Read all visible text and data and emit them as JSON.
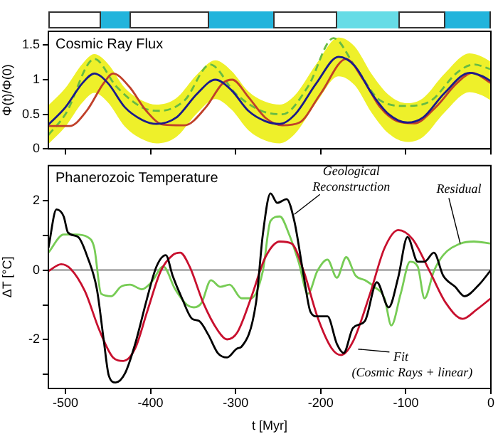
{
  "chart_data": [
    {
      "type": "line",
      "title": "Cosmic Ray Flux",
      "ylabel": "Φ(t)/Φ(0)",
      "xlim": [
        -520,
        0
      ],
      "xticks": [
        -500,
        -400,
        -300,
        -200,
        -100,
        0
      ],
      "ylim": [
        0,
        1.7
      ],
      "yticks": [
        0,
        0.5,
        1,
        1.5
      ],
      "tick_labels": "y",
      "grid": false,
      "legend": false,
      "series": [
        {
          "color": "#66bb44",
          "line_style": "dashed",
          "x": [
            -520,
            -500,
            -466,
            -440,
            -410,
            -390,
            -360,
            -330,
            -300,
            -270,
            -245,
            -215,
            -185,
            -160,
            -130,
            -100,
            -70,
            -40,
            -20,
            0
          ],
          "values": [
            0.2,
            0.5,
            1.3,
            0.9,
            0.6,
            0.55,
            0.7,
            1.22,
            0.8,
            0.55,
            0.5,
            0.9,
            1.6,
            1.2,
            0.7,
            0.62,
            0.7,
            1.1,
            1.22,
            1.15
          ]
        },
        {
          "color": "#c0402a",
          "x": [
            -520,
            -495,
            -475,
            -455,
            -444,
            -425,
            -405,
            -385,
            -360,
            -335,
            -315,
            -304,
            -285,
            -265,
            -245,
            -225,
            -200,
            -170,
            -150,
            -130,
            -110,
            -90,
            -65,
            -40,
            -22,
            0
          ],
          "values": [
            0.33,
            0.33,
            0.55,
            0.95,
            1.09,
            0.9,
            0.55,
            0.35,
            0.34,
            0.6,
            0.95,
            1.0,
            0.75,
            0.45,
            0.34,
            0.38,
            0.8,
            1.3,
            1.0,
            0.6,
            0.4,
            0.37,
            0.6,
            0.95,
            1.1,
            0.95
          ]
        },
        {
          "color": "#1a1a8c",
          "x": [
            -520,
            -500,
            -480,
            -466,
            -450,
            -430,
            -410,
            -393,
            -370,
            -345,
            -324,
            -305,
            -285,
            -265,
            -248,
            -230,
            -205,
            -179,
            -160,
            -140,
            -120,
            -98,
            -80,
            -55,
            -25,
            -10,
            0
          ],
          "values": [
            0.35,
            0.6,
            0.95,
            1.09,
            0.95,
            0.6,
            0.42,
            0.36,
            0.45,
            0.8,
            1.0,
            0.85,
            0.55,
            0.4,
            0.36,
            0.5,
            0.95,
            1.33,
            1.2,
            0.8,
            0.5,
            0.38,
            0.45,
            0.8,
            1.1,
            1.05,
            0.98
          ],
          "lower": [
            0.07,
            0.32,
            0.67,
            0.81,
            0.67,
            0.32,
            0.14,
            0.08,
            0.17,
            0.52,
            0.72,
            0.57,
            0.27,
            0.12,
            0.08,
            0.22,
            0.67,
            1.05,
            0.92,
            0.52,
            0.22,
            0.1,
            0.17,
            0.52,
            0.82,
            0.77,
            0.7
          ],
          "upper": [
            0.63,
            0.88,
            1.23,
            1.37,
            1.23,
            0.88,
            0.7,
            0.64,
            0.73,
            1.08,
            1.28,
            1.13,
            0.83,
            0.68,
            0.64,
            0.78,
            1.23,
            1.61,
            1.48,
            1.08,
            0.78,
            0.66,
            0.73,
            1.08,
            1.38,
            1.33,
            1.26
          ]
        }
      ]
    },
    {
      "type": "line",
      "title": "Phanerozoic Temperature",
      "xlabel": "t [Myr]",
      "ylabel": "ΔT [°C]",
      "xlim": [
        -520,
        0
      ],
      "xticks": [
        -500,
        -400,
        -300,
        -200,
        -100,
        0
      ],
      "ylim": [
        -3.4,
        3
      ],
      "yticks": [
        {
          "value": -3,
          "label": null
        },
        -2,
        {
          "value": -1,
          "label": null
        },
        0,
        {
          "value": 1,
          "label": null
        },
        2
      ],
      "grid": false,
      "legend": false,
      "ref_lines": [
        {
          "axis": "y",
          "value": 0,
          "color": "#888888"
        }
      ],
      "annotations": [
        {
          "text": "Geological Reconstruction",
          "x": -231,
          "y": 1.6
        },
        {
          "text": "Residual",
          "x": -36,
          "y": 0.76
        },
        {
          "text": "Fit (Cosmic Rays + linear)",
          "x": -156,
          "y": -2.27
        }
      ],
      "series": [
        {
          "color": "#77cc55",
          "x": [
            -520,
            -502,
            -488,
            -474,
            -466,
            -458,
            -446,
            -435,
            -424,
            -410,
            -399,
            -385,
            -371,
            -357,
            -349,
            -340,
            -329,
            -318,
            -307,
            -293,
            -282,
            -268,
            -259,
            -248,
            -237,
            -226,
            -215,
            -204,
            -192,
            -181,
            -170,
            -159,
            -148,
            -137,
            -125,
            -117,
            -106,
            -95,
            -86,
            -78,
            -67,
            -56,
            -36,
            -20,
            0
          ],
          "values": [
            0.5,
            1.02,
            1.02,
            0.95,
            0.63,
            -0.68,
            -0.75,
            -0.48,
            -0.42,
            -0.55,
            -0.35,
            0.1,
            -0.55,
            -1.0,
            -1.07,
            -0.94,
            -0.29,
            -0.48,
            -0.42,
            -0.81,
            -0.81,
            -0.03,
            1.41,
            1.54,
            1.02,
            0.24,
            -0.68,
            -0.03,
            0.3,
            -0.22,
            0.37,
            -0.16,
            -0.29,
            -0.48,
            -0.81,
            -1.59,
            -0.68,
            0.24,
            0.1,
            -0.81,
            -0.03,
            0.43,
            0.76,
            0.82,
            0.76
          ]
        },
        {
          "color": "#c8102e",
          "x": [
            -520,
            -505,
            -494,
            -477,
            -460,
            -444,
            -432,
            -418,
            -404,
            -388,
            -374,
            -365,
            -354,
            -338,
            -321,
            -310,
            -298,
            -282,
            -265,
            -248,
            -234,
            -220,
            -204,
            -187,
            -176,
            -162,
            -142,
            -125,
            -109,
            -92,
            -72,
            -53,
            -33,
            -17,
            0
          ],
          "values": [
            -0.03,
            0.17,
            0.04,
            -0.61,
            -1.73,
            -2.51,
            -2.61,
            -2.25,
            -1.2,
            -0.03,
            0.43,
            0.5,
            0.1,
            -0.94,
            -1.73,
            -1.99,
            -1.79,
            -0.81,
            0.37,
            0.82,
            0.76,
            -0.03,
            -1.33,
            -2.25,
            -2.44,
            -2.05,
            -0.68,
            0.63,
            1.15,
            0.89,
            -0.03,
            -0.94,
            -1.4,
            -1.14,
            -0.81
          ]
        },
        {
          "color": "#000000",
          "x": [
            -520,
            -510.5,
            -502,
            -497,
            -485,
            -474,
            -463,
            -455,
            -449,
            -441,
            -430,
            -418,
            -404,
            -393,
            -382,
            -374,
            -363,
            -351,
            -343,
            -332,
            -321,
            -310,
            -298,
            -293,
            -276,
            -268,
            -259,
            -251,
            -240,
            -231,
            -220,
            -212,
            -204,
            -192,
            -181,
            -173,
            -162,
            -148,
            -134,
            -120,
            -109,
            -98,
            -86,
            -78,
            -67,
            -56,
            -42,
            -31,
            -14,
            0
          ],
          "values": [
            0.63,
            1.74,
            1.54,
            1.08,
            0.95,
            0.37,
            -0.55,
            -2.0,
            -3.03,
            -3.23,
            -2.97,
            -2.12,
            -0.81,
            0.1,
            0.43,
            -0.16,
            -0.81,
            -1.4,
            -1.46,
            -1.86,
            -2.38,
            -2.51,
            -2.25,
            -2.2,
            -0.94,
            1.02,
            2.2,
            1.93,
            2.04,
            1.41,
            -0.16,
            -1.2,
            -1.33,
            -1.33,
            -2.12,
            -2.38,
            -1.66,
            -1.46,
            -0.35,
            -1.07,
            -0.22,
            0.95,
            0.24,
            0.24,
            0.5,
            -0.16,
            -0.48,
            -0.75,
            -0.42,
            0
          ]
        }
      ]
    }
  ]
}
